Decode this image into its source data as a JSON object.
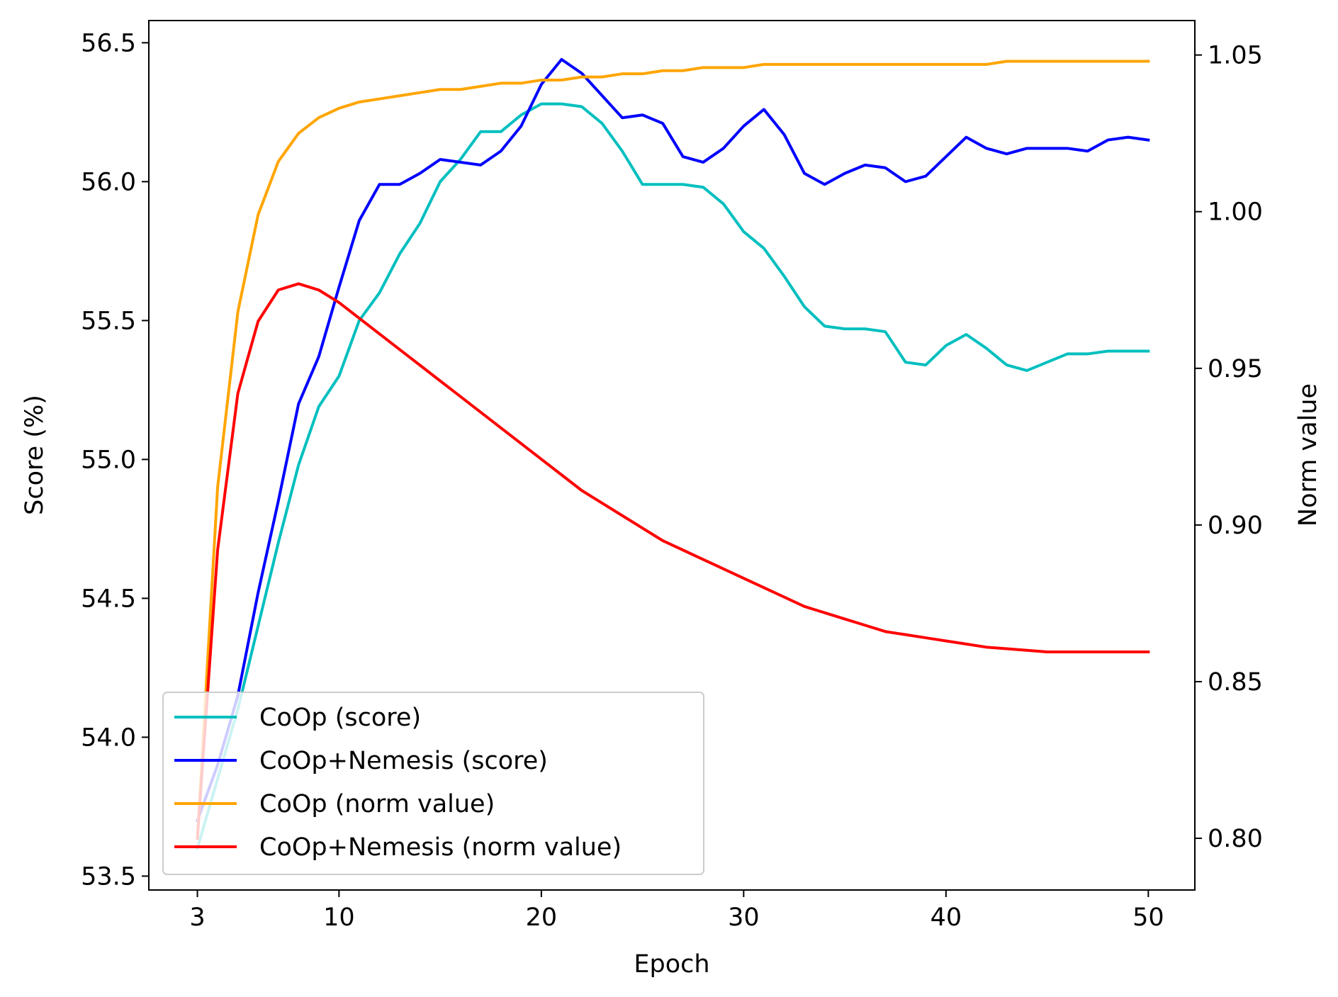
{
  "chart_data": {
    "type": "line",
    "xlabel": "Epoch",
    "ylabel_left": "Score (%)",
    "ylabel_right": "Norm value",
    "xlim": [
      0.6,
      52.3
    ],
    "ylim_left": [
      53.45,
      56.58
    ],
    "ylim_right": [
      0.7835,
      1.061
    ],
    "xticks": [
      3,
      10,
      20,
      30,
      40,
      50
    ],
    "yticks_left": [
      53.5,
      54.0,
      54.5,
      55.0,
      55.5,
      56.0,
      56.5
    ],
    "yticks_right": [
      0.8,
      0.85,
      0.9,
      0.95,
      1.0,
      1.05
    ],
    "legend_position": "lower-left",
    "grid": false,
    "series": [
      {
        "name": "CoOp (score)",
        "axis": "left",
        "color": "#00bfbf",
        "x": [
          3,
          4,
          5,
          6,
          7,
          8,
          9,
          10,
          11,
          12,
          13,
          14,
          15,
          16,
          17,
          18,
          19,
          20,
          21,
          22,
          23,
          24,
          25,
          26,
          27,
          28,
          29,
          30,
          31,
          32,
          33,
          34,
          35,
          36,
          37,
          38,
          39,
          40,
          41,
          42,
          43,
          44,
          45,
          46,
          47,
          48,
          49,
          50
        ],
        "values": [
          53.6,
          53.85,
          54.1,
          54.4,
          54.7,
          54.98,
          55.19,
          55.3,
          55.5,
          55.6,
          55.74,
          55.85,
          56.0,
          56.08,
          56.18,
          56.18,
          56.24,
          56.28,
          56.28,
          56.27,
          56.21,
          56.11,
          55.99,
          55.99,
          55.99,
          55.98,
          55.92,
          55.82,
          55.76,
          55.66,
          55.55,
          55.48,
          55.47,
          55.47,
          55.46,
          55.35,
          55.34,
          55.41,
          55.45,
          55.4,
          55.34,
          55.32,
          55.35,
          55.38,
          55.38,
          55.39,
          55.39,
          55.39
        ]
      },
      {
        "name": "CoOp+Nemesis (score)",
        "axis": "left",
        "color": "#0000ff",
        "x": [
          3,
          4,
          5,
          6,
          7,
          8,
          9,
          10,
          11,
          12,
          13,
          14,
          15,
          16,
          17,
          18,
          19,
          20,
          21,
          22,
          23,
          24,
          25,
          26,
          27,
          28,
          29,
          30,
          31,
          32,
          33,
          34,
          35,
          36,
          37,
          38,
          39,
          40,
          41,
          42,
          43,
          44,
          45,
          46,
          47,
          48,
          49,
          50
        ],
        "values": [
          53.7,
          53.9,
          54.15,
          54.52,
          54.85,
          55.2,
          55.37,
          55.62,
          55.86,
          55.99,
          55.99,
          56.03,
          56.08,
          56.07,
          56.06,
          56.11,
          56.2,
          56.35,
          56.44,
          56.39,
          56.31,
          56.23,
          56.24,
          56.21,
          56.09,
          56.07,
          56.12,
          56.2,
          56.26,
          56.17,
          56.03,
          55.99,
          56.03,
          56.06,
          56.05,
          56.0,
          56.02,
          56.09,
          56.16,
          56.12,
          56.1,
          56.12,
          56.12,
          56.12,
          56.11,
          56.15,
          56.16,
          56.15
        ]
      },
      {
        "name": "CoOp (norm value)",
        "axis": "right",
        "color": "#ffa500",
        "x": [
          3,
          4,
          5,
          6,
          7,
          8,
          9,
          10,
          11,
          12,
          13,
          14,
          15,
          16,
          17,
          18,
          19,
          20,
          21,
          22,
          23,
          24,
          25,
          26,
          27,
          28,
          29,
          30,
          31,
          32,
          33,
          34,
          35,
          36,
          37,
          38,
          39,
          40,
          41,
          42,
          43,
          44,
          45,
          46,
          47,
          48,
          49,
          50
        ],
        "values": [
          0.8,
          0.912,
          0.968,
          0.999,
          1.016,
          1.025,
          1.03,
          1.033,
          1.035,
          1.036,
          1.037,
          1.038,
          1.039,
          1.039,
          1.04,
          1.041,
          1.041,
          1.042,
          1.042,
          1.043,
          1.043,
          1.044,
          1.044,
          1.045,
          1.045,
          1.046,
          1.046,
          1.046,
          1.047,
          1.047,
          1.047,
          1.047,
          1.047,
          1.047,
          1.047,
          1.047,
          1.047,
          1.047,
          1.047,
          1.047,
          1.048,
          1.048,
          1.048,
          1.048,
          1.048,
          1.048,
          1.048,
          1.048
        ]
      },
      {
        "name": "CoOp+Nemesis (norm value)",
        "axis": "right",
        "color": "#ff0000",
        "x": [
          3,
          4,
          5,
          6,
          7,
          8,
          9,
          10,
          11,
          12,
          13,
          14,
          15,
          16,
          17,
          18,
          19,
          20,
          21,
          22,
          23,
          24,
          25,
          26,
          27,
          28,
          29,
          30,
          31,
          32,
          33,
          34,
          35,
          36,
          37,
          38,
          39,
          40,
          41,
          42,
          43,
          44,
          45,
          46,
          47,
          48,
          49,
          50
        ],
        "values": [
          0.8,
          0.892,
          0.942,
          0.965,
          0.975,
          0.977,
          0.975,
          0.971,
          0.966,
          0.961,
          0.956,
          0.951,
          0.946,
          0.941,
          0.936,
          0.931,
          0.926,
          0.921,
          0.916,
          0.911,
          0.907,
          0.903,
          0.899,
          0.895,
          0.892,
          0.889,
          0.886,
          0.883,
          0.88,
          0.877,
          0.874,
          0.872,
          0.87,
          0.868,
          0.866,
          0.865,
          0.864,
          0.863,
          0.862,
          0.861,
          0.8605,
          0.86,
          0.8595,
          0.8595,
          0.8595,
          0.8595,
          0.8595,
          0.8595
        ]
      }
    ]
  }
}
